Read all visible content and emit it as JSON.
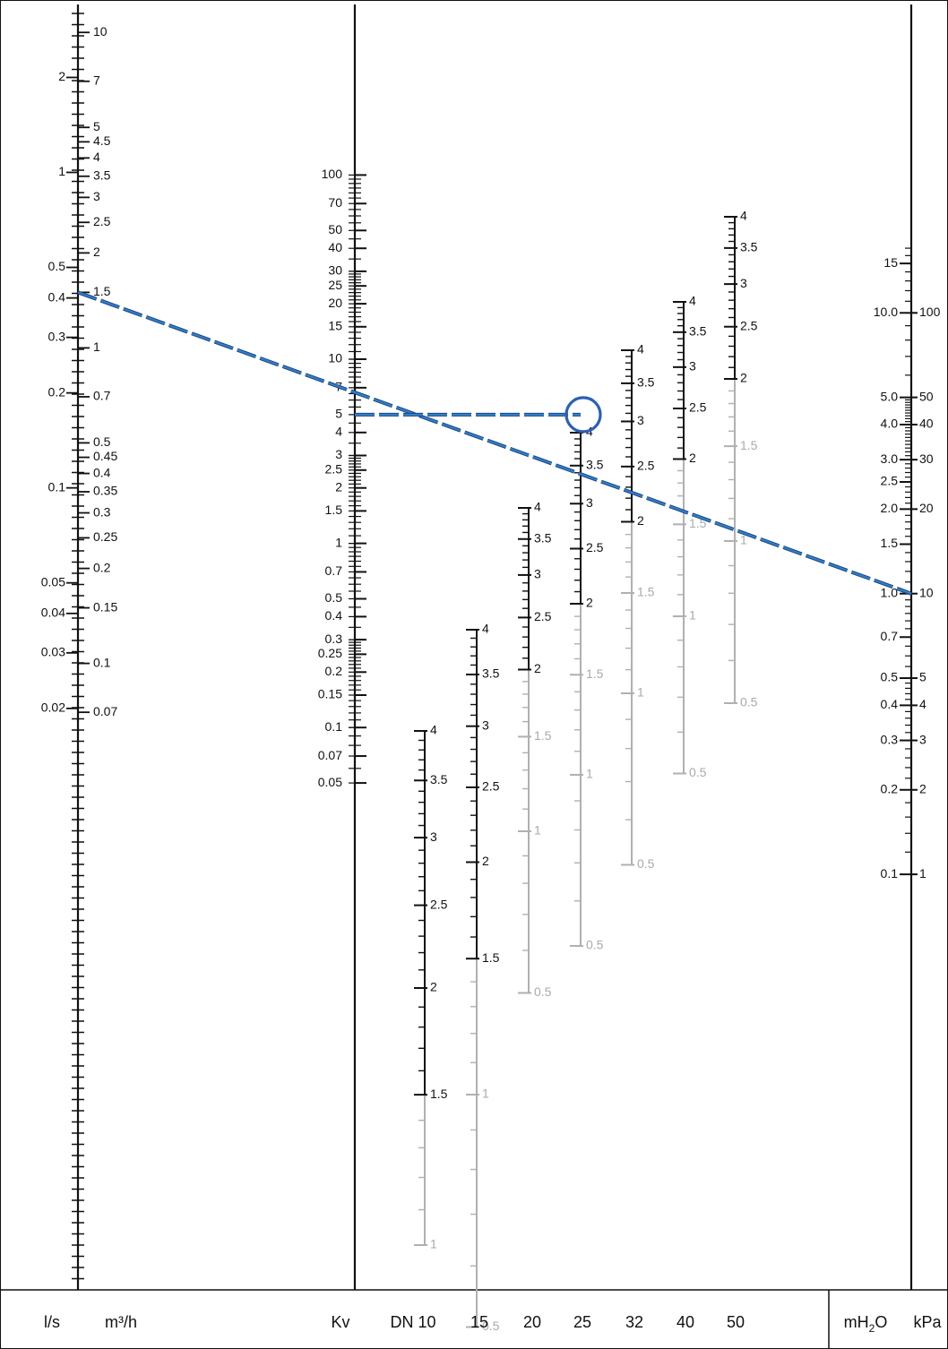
{
  "footer": {
    "ls": "l/s",
    "m3h": "m³/h",
    "kv": "Kv",
    "dn": [
      "DN 10",
      "15",
      "20",
      "25",
      "32",
      "40",
      "50"
    ],
    "mh2o_main": "mH",
    "mh2o_sub": "2",
    "mh2o_tail": "O",
    "kpa": "kPa"
  },
  "scales": {
    "ls": [
      "2",
      "1",
      "0.5",
      "0.4",
      "0.3",
      "0.2",
      "0.1",
      "0.05",
      "0.04",
      "0.03",
      "0.02"
    ],
    "m3h": [
      "10",
      "7",
      "5",
      "4.5",
      "4",
      "3.5",
      "3",
      "2.5",
      "2",
      "1.5",
      "1",
      "0.7",
      "0.5",
      "0.45",
      "0.4",
      "0.35",
      "0.3",
      "0.25",
      "0.2",
      "0.15",
      "0.1",
      "0.07"
    ],
    "kv": [
      "100",
      "70",
      "50",
      "40",
      "30",
      "25",
      "20",
      "15",
      "10",
      "7",
      "5",
      "4",
      "3",
      "2.5",
      "2",
      "1.5",
      "1",
      "0.7",
      "0.5",
      "0.4",
      "0.3",
      "0.25",
      "0.2",
      "0.15",
      "0.1",
      "0.07",
      "0.05"
    ],
    "mh2o": [
      "0.1",
      "0.2",
      "0.3",
      "0.4",
      "0.5",
      "0.7",
      "1.0",
      "1.5",
      "2.0",
      "2.5",
      "3.0",
      "4.0",
      "5.0",
      "10.0",
      "15"
    ],
    "kpa": [
      "1",
      "2",
      "3",
      "4",
      "5",
      "10",
      "20",
      "30",
      "40",
      "50",
      "100"
    ]
  },
  "dn_scales": [
    {
      "dn": "DN 10",
      "black": [
        "4",
        "3.5",
        "3",
        "2.5",
        "2",
        "1.5"
      ],
      "gray": [
        "1"
      ]
    },
    {
      "dn": "15",
      "black": [
        "4",
        "3.5",
        "3",
        "2.5",
        "2",
        "1.5"
      ],
      "gray": [
        "1",
        "0.5"
      ]
    },
    {
      "dn": "20",
      "black": [
        "4",
        "3.5",
        "3",
        "2.5",
        "2"
      ],
      "gray": [
        "1.5",
        "1",
        "0.5"
      ]
    },
    {
      "dn": "25",
      "black": [
        "4",
        "3.5",
        "3",
        "2.5",
        "2"
      ],
      "gray": [
        "1.5",
        "1",
        "0.5"
      ]
    },
    {
      "dn": "32",
      "black": [
        "4",
        "3.5",
        "3",
        "2.5",
        "2"
      ],
      "gray": [
        "1.5",
        "1",
        "0.5"
      ]
    },
    {
      "dn": "40",
      "black": [
        "4",
        "3.5",
        "3",
        "2.5",
        "2"
      ],
      "gray": [
        "1.5",
        "1",
        "0.5"
      ]
    },
    {
      "dn": "50",
      "black": [
        "4",
        "3.5",
        "3",
        "2.5",
        "2"
      ],
      "gray": [
        "1.5",
        "1",
        "0.5"
      ]
    }
  ],
  "example": {
    "flow_m3h": "1.5",
    "kv": "5",
    "dn": "25",
    "setting": "2.5",
    "pressure_kpa": "10",
    "line_color": "#2f7fc8",
    "marker_color": "#2b5fb8"
  }
}
